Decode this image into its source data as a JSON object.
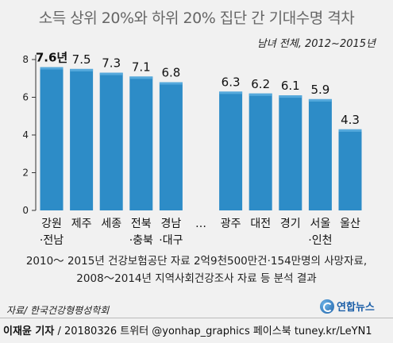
{
  "title": "소득 상위 20%와 하위 20% 집단 간 기대수명 격차",
  "subtitle": "남녀 전체, 2012~2015년",
  "chart_data": {
    "type": "bar",
    "categories": [
      [
        "강원",
        "·전남"
      ],
      [
        "제주"
      ],
      [
        "세종"
      ],
      [
        "전북",
        "·충북"
      ],
      [
        "경남",
        "·대구"
      ],
      [
        "…"
      ],
      [
        "광주"
      ],
      [
        "대전"
      ],
      [
        "경기"
      ],
      [
        "서울",
        "·인천"
      ],
      [
        "울산"
      ]
    ],
    "values": [
      7.6,
      7.5,
      7.3,
      7.1,
      6.8,
      null,
      6.3,
      6.2,
      6.1,
      5.9,
      4.3
    ],
    "value_labels": [
      "7.6년",
      "7.5",
      "7.3",
      "7.1",
      "6.8",
      "",
      "6.3",
      "6.2",
      "6.1",
      "5.9",
      "4.3"
    ],
    "ylim": [
      0,
      8
    ],
    "yticks": [
      0,
      2,
      4,
      6,
      8
    ],
    "xlabel": "",
    "ylabel": "",
    "bar_color": "#2d8cc7",
    "bar_color_light": "#55a9dc",
    "grid": false
  },
  "note_lines": [
    "2010～ 2015년 건강보험공단 자료 2억9천500만건·154만명의 사망자료,",
    "2008～2014년 지역사회건강조사 자료 등 분석 결과"
  ],
  "source": "자료/ 한국건강형평성학회",
  "logo_text": "연합뉴스",
  "footer": {
    "reporter": "이재윤 기자",
    "rest": " / 20180326   트위터 @yonhap_graphics  페이스북 tuney.kr/LeYN1"
  }
}
